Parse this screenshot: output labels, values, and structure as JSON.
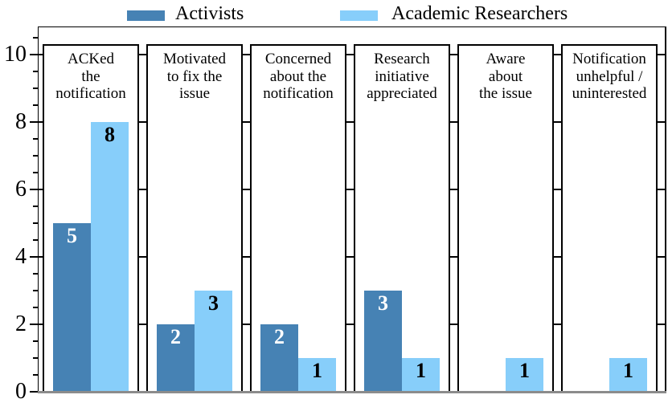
{
  "legend": {
    "items": [
      {
        "label": "Activists",
        "color": "#4682B4"
      },
      {
        "label": "Academic Researchers",
        "color": "#87CEFA"
      }
    ]
  },
  "chart_data": {
    "type": "bar",
    "title": "",
    "xlabel": "",
    "ylabel": "",
    "categories": [
      "ACKed the notification",
      "Motivated to fix the issue",
      "Concerned about the notification",
      "Research initiative appreciated",
      "Aware about the issue",
      "Notification unhelpful / uninterested"
    ],
    "category_lines": [
      [
        "ACKed",
        "the",
        "notification"
      ],
      [
        "Motivated",
        "to fix the",
        "issue"
      ],
      [
        "Concerned",
        "about the",
        "notification"
      ],
      [
        "Research",
        "initiative",
        "appreciated"
      ],
      [
        "Aware",
        "about",
        "the issue"
      ],
      [
        "Notification",
        "unhelpful /",
        "uninterested"
      ]
    ],
    "series": [
      {
        "name": "Activists",
        "color": "#4682B4",
        "label_color": "#ffffff",
        "values": [
          5,
          2,
          2,
          3,
          0,
          0
        ]
      },
      {
        "name": "Academic Researchers",
        "color": "#87CEFA",
        "label_color": "#000000",
        "values": [
          8,
          3,
          1,
          1,
          1,
          1
        ]
      }
    ],
    "ylim": [
      0,
      10.8
    ],
    "yticks": [
      0,
      2,
      4,
      6,
      8,
      10
    ],
    "minor_tick_step": 0.5,
    "grid": false,
    "legend_position": "top",
    "bar_value_labels": true,
    "colors": {
      "spine": "#000000",
      "baseline": "#8c8c8c"
    }
  }
}
